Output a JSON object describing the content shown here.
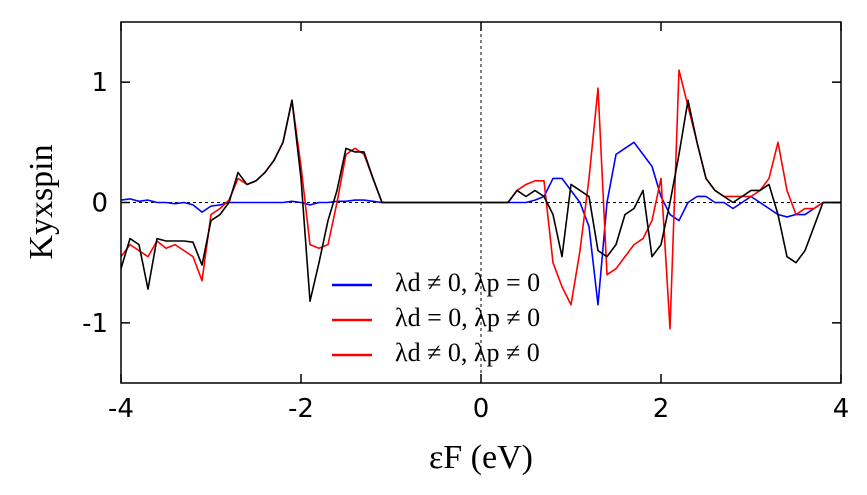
{
  "chart_data": {
    "type": "line",
    "x_label": "εF (eV)",
    "y_label": "Kyxspin",
    "x": [
      -4,
      -3.9,
      -3.8,
      -3.7,
      -3.6,
      -3.5,
      -3.4,
      -3.3,
      -3.2,
      -3.1,
      -3,
      -2.9,
      -2.8,
      -2.7,
      -2.6,
      -2.5,
      -2.4,
      -2.3,
      -2.2,
      -2.1,
      -2,
      -1.9,
      -1.8,
      -1.7,
      -1.6,
      -1.5,
      -1.4,
      -1.3,
      -1.2,
      -1.1,
      -1,
      -0.9,
      -0.8,
      -0.7,
      -0.6,
      -0.5,
      -0.4,
      -0.3,
      -0.2,
      -0.1,
      0,
      0.1,
      0.2,
      0.3,
      0.4,
      0.5,
      0.6,
      0.7,
      0.8,
      0.9,
      1,
      1.1,
      1.2,
      1.3,
      1.4,
      1.5,
      1.6,
      1.7,
      1.8,
      1.9,
      2,
      2.1,
      2.2,
      2.3,
      2.4,
      2.5,
      2.6,
      2.7,
      2.8,
      2.9,
      3,
      3.1,
      3.2,
      3.3,
      3.4,
      3.5,
      3.6,
      3.7,
      3.8,
      3.9,
      4
    ],
    "series": [
      {
        "name": "λd ≠ 0, λp = 0",
        "color": "#0000ff",
        "values": [
          0.02,
          0.03,
          0.01,
          0.02,
          0,
          0,
          -0.01,
          0,
          -0.02,
          -0.08,
          -0.03,
          -0.02,
          0,
          0,
          0,
          0,
          0,
          0,
          0,
          0.01,
          0,
          -0.02,
          0,
          0,
          0.01,
          0.01,
          0.02,
          0.02,
          0.01,
          0,
          0,
          0,
          0,
          0,
          0,
          0,
          0,
          0,
          0,
          0,
          0,
          0,
          0,
          0,
          0,
          0,
          0.02,
          0.05,
          0.2,
          0.2,
          0.1,
          0,
          -0.2,
          -0.85,
          0,
          0.4,
          0.45,
          0.5,
          0.4,
          0.3,
          0.05,
          -0.1,
          -0.15,
          0,
          0.05,
          0.05,
          0,
          0,
          -0.05,
          0,
          0.05,
          0,
          -0.05,
          -0.1,
          -0.12,
          -0.1,
          -0.1,
          -0.05,
          0,
          0,
          0
        ]
      },
      {
        "name": "λd = 0, λp ≠ 0",
        "color": "#ff0000",
        "values": [
          -0.45,
          -0.35,
          -0.4,
          -0.45,
          -0.32,
          -0.38,
          -0.35,
          -0.4,
          -0.45,
          -0.65,
          -0.1,
          -0.05,
          0.02,
          0.2,
          0.15,
          0.18,
          0.25,
          0.35,
          0.5,
          0.85,
          0.3,
          -0.35,
          -0.38,
          -0.35,
          0,
          0.4,
          0.45,
          0.4,
          0.2,
          0,
          0,
          0,
          0,
          0,
          0,
          0,
          0,
          0,
          0,
          0,
          0,
          0,
          0,
          0,
          0.1,
          0.15,
          0.18,
          0.18,
          -0.5,
          -0.7,
          -0.85,
          -0.4,
          0.2,
          0.95,
          -0.6,
          -0.55,
          -0.45,
          -0.35,
          -0.3,
          -0.15,
          0.2,
          -1.05,
          1.1,
          0.8,
          0.5,
          0.2,
          0.1,
          0.05,
          0.05,
          0.05,
          0.05,
          0.1,
          0.2,
          0.5,
          0.1,
          -0.1,
          -0.05,
          -0.05,
          0,
          0,
          0
        ]
      },
      {
        "name": "λd ≠ 0, λp ≠ 0",
        "color": "#000000",
        "legend_color": "#ff0000",
        "values": [
          -0.55,
          -0.3,
          -0.35,
          -0.72,
          -0.3,
          -0.32,
          -0.32,
          -0.32,
          -0.33,
          -0.52,
          -0.15,
          -0.1,
          0,
          0.25,
          0.15,
          0.18,
          0.25,
          0.35,
          0.5,
          0.85,
          0.2,
          -0.82,
          -0.5,
          -0.15,
          0.1,
          0.45,
          0.42,
          0.42,
          0.2,
          0,
          0,
          0,
          0,
          0,
          0,
          0,
          0,
          0,
          0,
          0,
          0,
          0,
          0,
          0,
          0.1,
          0.05,
          0.1,
          0.05,
          -0.1,
          -0.45,
          0.15,
          0.1,
          0.05,
          -0.4,
          -0.45,
          -0.35,
          -0.1,
          -0.05,
          0.1,
          -0.45,
          -0.35,
          0,
          0.4,
          0.85,
          0.5,
          0.2,
          0.1,
          0.05,
          0,
          0.05,
          0.1,
          0.1,
          0.15,
          -0.1,
          -0.45,
          -0.5,
          -0.4,
          -0.2,
          0,
          0,
          0
        ]
      }
    ],
    "xlim": [
      -4,
      4
    ],
    "xticks": [
      -4,
      -2,
      0,
      2,
      4
    ],
    "ylim": [
      -1.5,
      1.5
    ],
    "yticks": [
      -1,
      0,
      1
    ],
    "zero_lines": true,
    "legend_position": "lower center"
  }
}
